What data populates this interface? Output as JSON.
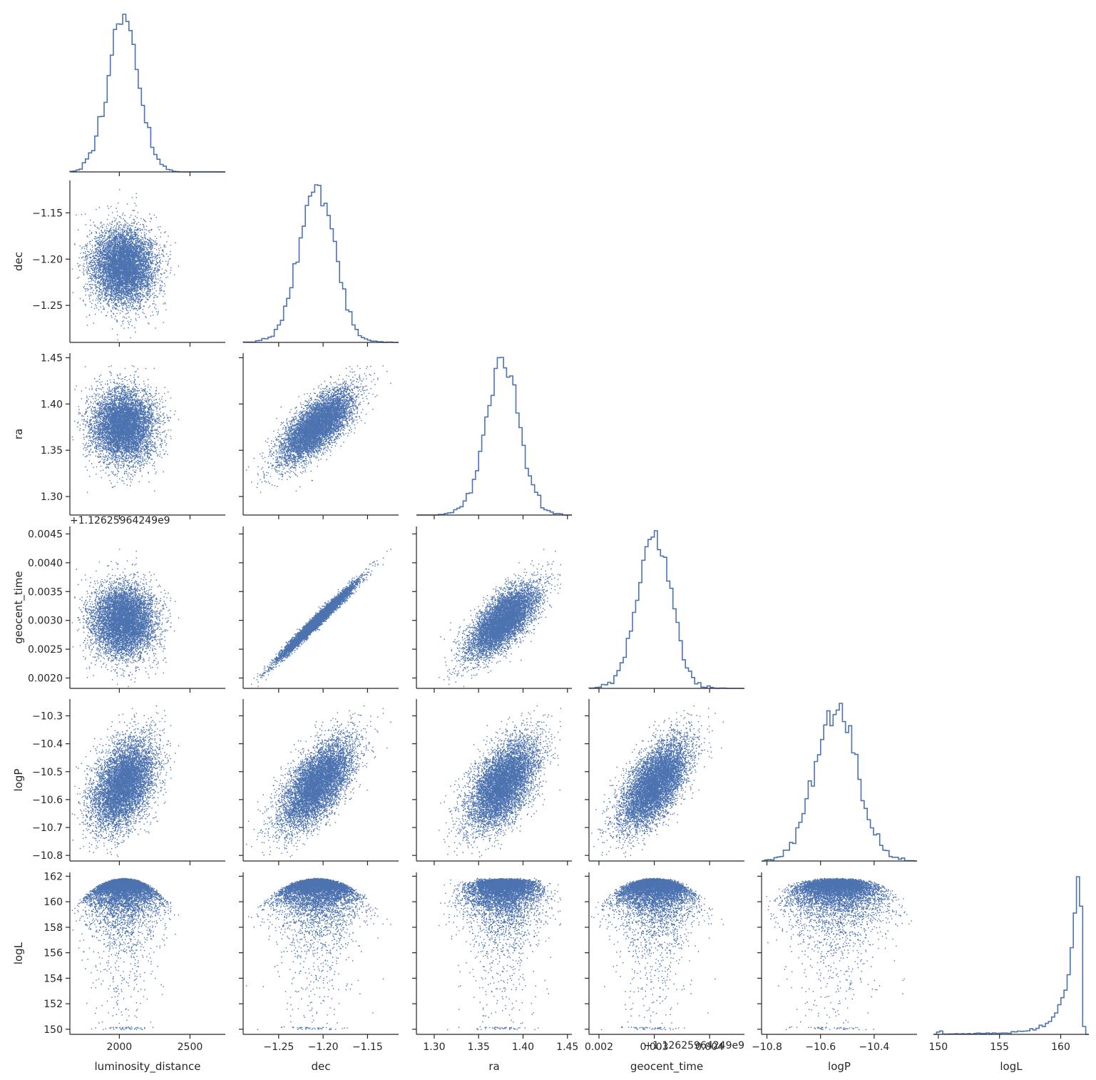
{
  "chart_data": {
    "type": "scatter",
    "kind": "corner / pair plot (lower triangle scatter, step histograms on diagonal)",
    "marker_color": "#4c72b0",
    "variables": [
      {
        "name": "luminosity_distance",
        "xlabel": "luminosity_distance",
        "ylabel": "",
        "range": [
          1650,
          2750
        ],
        "ticks": [
          2000,
          2500
        ],
        "tick_labels": [
          "2000",
          "2500"
        ],
        "mean": 2030,
        "sd": 110
      },
      {
        "name": "dec",
        "xlabel": "dec",
        "ylabel": "dec",
        "range": [
          -1.29,
          -1.115
        ],
        "ticks": [
          -1.25,
          -1.2,
          -1.15
        ],
        "tick_labels": [
          "−1.25",
          "−1.20",
          "−1.15"
        ],
        "mean": -1.207,
        "sd": 0.0205
      },
      {
        "name": "ra",
        "xlabel": "ra",
        "ylabel": "ra",
        "range": [
          1.28,
          1.455
        ],
        "ticks": [
          1.3,
          1.35,
          1.4,
          1.45
        ],
        "tick_labels": [
          "1.30",
          "1.35",
          "1.40",
          "1.45"
        ],
        "mean": 1.377,
        "sd": 0.0195
      },
      {
        "name": "geocent_time",
        "xlabel": "geocent_time",
        "ylabel": "geocent_time",
        "range": [
          0.00182,
          0.00463
        ],
        "ticks": [
          0.002,
          0.0025,
          0.003,
          0.0035,
          0.004,
          0.0045
        ],
        "tick_labels": [
          "0.0020",
          "0.0025",
          "0.0030",
          "0.0035",
          "0.0040",
          "0.0045"
        ],
        "x_ticks": [
          0.002,
          0.003,
          0.004
        ],
        "x_tick_labels": [
          "0.002",
          "0.003",
          "0.004"
        ],
        "offset_label": "+1.12625964249e9",
        "mean": 0.003,
        "sd": 0.00031
      },
      {
        "name": "logP",
        "xlabel": "logP",
        "ylabel": "logP",
        "range": [
          -10.82,
          -10.24
        ],
        "ticks": [
          -10.8,
          -10.7,
          -10.6,
          -10.5,
          -10.4,
          -10.3
        ],
        "tick_labels": [
          "−10.8",
          "−10.7",
          "−10.6",
          "−10.5",
          "−10.4",
          "−10.3"
        ],
        "x_ticks": [
          -10.8,
          -10.6,
          -10.4
        ],
        "x_tick_labels": [
          "−10.8",
          "−10.6",
          "−10.4"
        ],
        "mean": -10.54,
        "sd": 0.075
      },
      {
        "name": "logL",
        "xlabel": "logL",
        "ylabel": "logL",
        "range": [
          149.6,
          162.3
        ],
        "ticks": [
          150,
          152,
          154,
          156,
          158,
          160,
          162
        ],
        "tick_labels": [
          "150",
          "152",
          "154",
          "156",
          "158",
          "160",
          "162"
        ],
        "x_ticks": [
          150,
          155,
          160
        ],
        "x_tick_labels": [
          "150",
          "155",
          "160"
        ],
        "peak": 161.9
      }
    ],
    "correlations": {
      "dec|luminosity_distance": 0.0,
      "ra|luminosity_distance": 0.0,
      "ra|dec": 0.72,
      "geocent_time|luminosity_distance": 0.0,
      "geocent_time|dec": 0.985,
      "geocent_time|ra": 0.7,
      "logP|luminosity_distance": 0.6,
      "logP|dec": 0.7,
      "logP|ra": 0.55,
      "logP|geocent_time": 0.7
    },
    "n_samples": 7000,
    "diagonal": "step histogram, 50 bins"
  }
}
